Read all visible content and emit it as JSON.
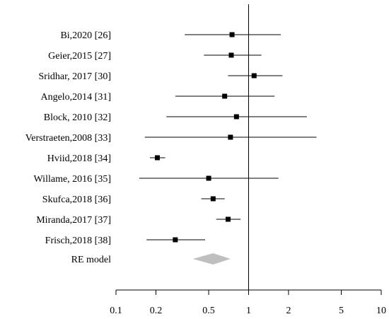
{
  "chart_data": {
    "type": "forest",
    "x_scale": "log",
    "xlim": [
      0.1,
      10
    ],
    "x_ticks": [
      0.1,
      0.2,
      0.5,
      1,
      2,
      5,
      10
    ],
    "x_tick_labels": [
      "0.1",
      "0.2",
      "0.5",
      "1",
      "2",
      "5",
      "10"
    ],
    "reference_line": 1,
    "grid": false,
    "studies": [
      {
        "label": "Bi,2020 [26]",
        "estimate": 0.75,
        "lower": 0.33,
        "upper": 1.75
      },
      {
        "label": "Geier,2015 [27]",
        "estimate": 0.74,
        "lower": 0.46,
        "upper": 1.25
      },
      {
        "label": "Sridhar, 2017 [30]",
        "estimate": 1.1,
        "lower": 0.7,
        "upper": 1.8
      },
      {
        "label": "Angelo,2014 [31]",
        "estimate": 0.66,
        "lower": 0.28,
        "upper": 1.57
      },
      {
        "label": "Block, 2010 [32]",
        "estimate": 0.81,
        "lower": 0.24,
        "upper": 2.75
      },
      {
        "label": "Verstraeten,2008 [33]",
        "estimate": 0.73,
        "lower": 0.165,
        "upper": 3.25
      },
      {
        "label": "Hviid,2018 [34]",
        "estimate": 0.205,
        "lower": 0.18,
        "upper": 0.235
      },
      {
        "label": "Willame, 2016 [35]",
        "estimate": 0.5,
        "lower": 0.15,
        "upper": 1.68
      },
      {
        "label": "Skufca,2018 [36]",
        "estimate": 0.54,
        "lower": 0.44,
        "upper": 0.66
      },
      {
        "label": "Miranda,2017 [37]",
        "estimate": 0.7,
        "lower": 0.57,
        "upper": 0.87
      },
      {
        "label": "Frisch,2018 [38]",
        "estimate": 0.28,
        "lower": 0.17,
        "upper": 0.47
      }
    ],
    "summary": {
      "label": "RE model",
      "estimate": 0.54,
      "lower": 0.38,
      "upper": 0.73,
      "color": "#bfbfbf"
    },
    "marker_color": "#000000"
  }
}
